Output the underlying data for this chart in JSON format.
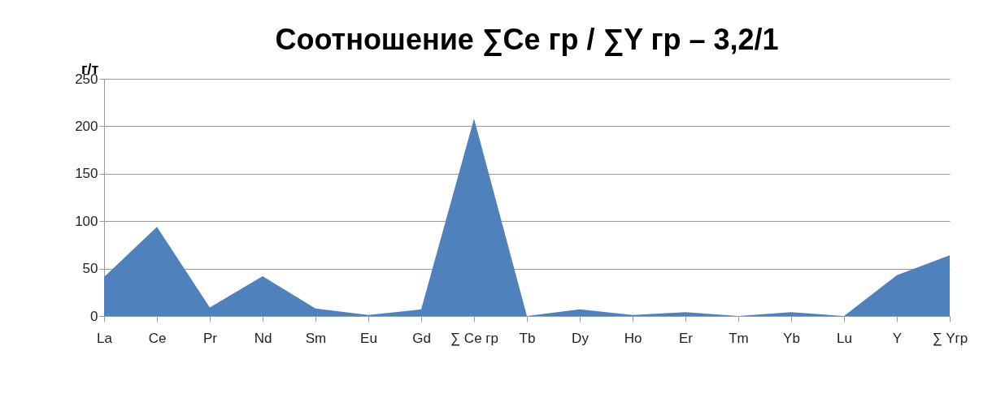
{
  "chart_data": {
    "type": "area",
    "title": "Соотношение ∑Ce гр / ∑Y гр – 3,2/1",
    "ylabel": "г/т",
    "categories": [
      "La",
      "Ce",
      "Pr",
      "Nd",
      "Sm",
      "Eu",
      "Gd",
      "∑ Ce гр",
      "Tb",
      "Dy",
      "Ho",
      "Er",
      "Tm",
      "Yb",
      "Lu",
      "Y",
      "∑ Yгр"
    ],
    "series": [
      {
        "color": "#4f81bd",
        "values": [
          41,
          94,
          9,
          42,
          8,
          1,
          7,
          208,
          0,
          7,
          1,
          4,
          0,
          4,
          0,
          43,
          64
        ]
      }
    ],
    "ylim": [
      0,
      250
    ],
    "yticks": [
      0,
      50,
      100,
      150,
      200,
      250
    ],
    "grid": "y"
  }
}
